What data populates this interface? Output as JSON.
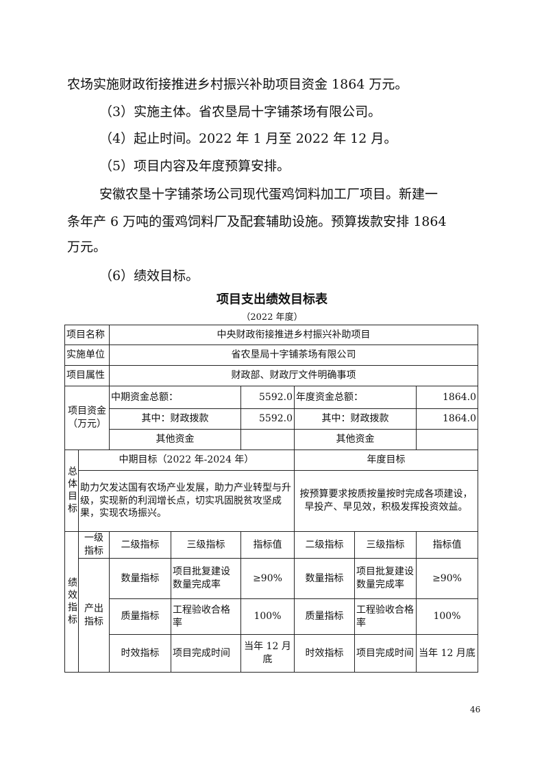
{
  "body": {
    "lines": [
      "农场实施财政衔接推进乡村振兴补助项目资金 1864 万元。",
      "（3）实施主体。省农垦局十字铺茶场有限公司。",
      "（4）起止时间。2022 年 1 月至 2022 年 12 月。",
      "（5）项目内容及年度预算安排。",
      "安徽农垦十字铺茶场公司现代蛋鸡饲料加工厂项目。新建一",
      "条年产 6 万吨的蛋鸡饲料厂及配套辅助设施。预算拨款安排 1864",
      "万元。",
      "（6）绩效目标。"
    ]
  },
  "table": {
    "title": "项目支出绩效目标表",
    "subtitle": "（2022 年度）",
    "project_name_label": "项目名称",
    "project_name": "中央财政衔接推进乡村振兴补助项目",
    "unit_label": "实施单位",
    "unit": "省农垦局十字铺茶场有限公司",
    "attr_label": "项目属性",
    "attr": "财政部、财政厅文件明确事项",
    "funds_label": "项目资金（万元）",
    "mid_total_label": "中期资金总额：",
    "mid_total": "5592.0",
    "year_total_label": "年度资金总额：",
    "year_total": "1864.0",
    "mid_fiscal_label": "其中：财政拨款",
    "mid_fiscal": "5592.0",
    "year_fiscal_label": "其中：财政拨款",
    "year_fiscal": "1864.0",
    "mid_other_label": "其他资金",
    "year_other_label": "其他资金",
    "overall_label": "总体目标",
    "mid_goal_header": "中期目标（2022 年-2024 年）",
    "year_goal_header": "年度目标",
    "mid_goal": "助力欠发达国有农场产业发展，助力产业转型与升级，实现新的利润增长点，切实巩固脱贫攻坚成果，实现农场振兴。",
    "year_goal": "按预算要求按质按量按时完成各项建设，早投产、早见效，积极发挥投资效益。",
    "perf_label": "绩效指标",
    "headers": [
      "一级指标",
      "二级指标",
      "三级指标",
      "指标值",
      "二级指标",
      "三级指标",
      "指标值"
    ],
    "level1": "产出指标",
    "rows": [
      {
        "l2": "数量指标",
        "l3": "项目批复建设数量完成率",
        "val": "≥90%",
        "l2b": "数量指标",
        "l3b": "项目批复建设数量完成率",
        "valb": "≥90%"
      },
      {
        "l2": "质量指标",
        "l3": "工程验收合格率",
        "val": "100%",
        "l2b": "质量指标",
        "l3b": "工程验收合格率",
        "valb": "100%"
      },
      {
        "l2": "时效指标",
        "l3": "项目完成时间",
        "val": "当年 12 月底",
        "l2b": "时效指标",
        "l3b": "项目完成时间",
        "valb": "当年 12 月底"
      }
    ]
  },
  "page_number": "46"
}
